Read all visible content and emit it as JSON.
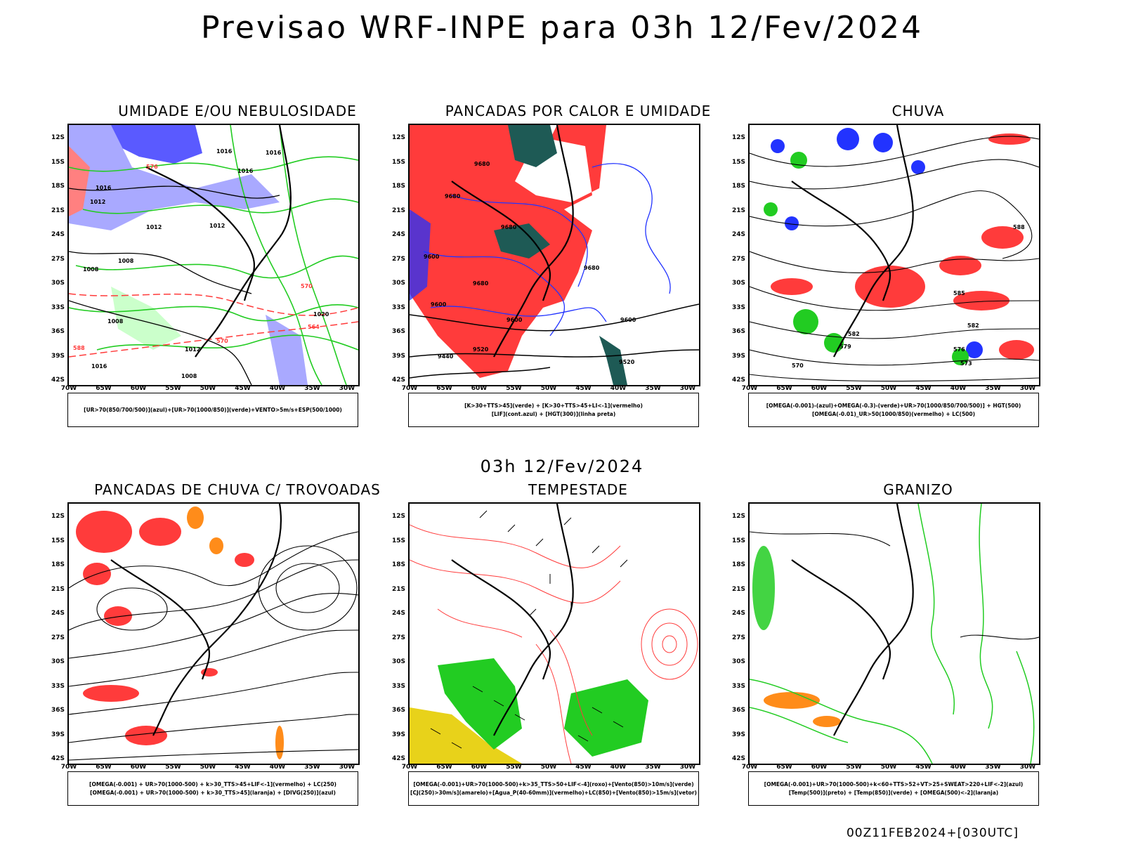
{
  "header": {
    "title": "Previsao WRF-INPE  para 03h 12/Fev/2024"
  },
  "row2_title": "03h 12/Fev/2024",
  "footer": "00Z11FEB2024+[030UTC]",
  "axes": {
    "lat_labels": [
      "12S",
      "15S",
      "18S",
      "21S",
      "24S",
      "27S",
      "30S",
      "33S",
      "36S",
      "39S",
      "42S"
    ],
    "lon_labels": [
      "70W",
      "65W",
      "60W",
      "55W",
      "50W",
      "45W",
      "40W",
      "35W",
      "30W"
    ]
  },
  "colors": {
    "green": "#22cc22",
    "red": "#ff3b3b",
    "blue": "#2233ff",
    "lightblue": "#a9a9ff",
    "darkteal": "#1e5a55",
    "orange": "#ff8c1a",
    "yellow": "#e8d21a"
  },
  "panels": [
    {
      "title": "UMIDADE E/OU NEBULOSIDADE",
      "legend": [
        "[UR>70(850/700/500)](azul)+[UR>70(1000/850)](verde)+VENTO>5m/s+ESP(500/1000)"
      ],
      "contour_labels": [
        "1016",
        "1016",
        "1016",
        "1016",
        "1012",
        "1012",
        "1012",
        "1008",
        "1008",
        "1008",
        "1020",
        "1012",
        "1016",
        "1008",
        "576",
        "570",
        "570",
        "564",
        "588"
      ]
    },
    {
      "title": "PANCADAS POR CALOR E UMIDADE",
      "legend": [
        "[K>30+TTS>45](verde) + [K>30+TTS>45+LI<-1](vermelho)",
        "[LIF](cont.azul) + [HGT(300)](linha preta)"
      ],
      "contour_labels": [
        "9680",
        "9680",
        "9680",
        "9680",
        "9600",
        "9600",
        "9680",
        "9600",
        "9600",
        "9520",
        "9440",
        "9520"
      ]
    },
    {
      "title": "CHUVA",
      "legend": [
        "[OMEGA(-0.001)-(azul)+OMEGA(-0.3)-(verde)+UR>70(1000/850/700/500)] + HGT(500)",
        "[OMEGA(-0.01)_UR>50(1000/850)(vermelho) + LC(500)"
      ],
      "contour_labels": [
        "588",
        "585",
        "582",
        "582",
        "579",
        "576",
        "570",
        "573"
      ]
    },
    {
      "title": "PANCADAS DE CHUVA C/ TROVOADAS",
      "legend": [
        "[OMEGA(-0.001) + UR>70(1000-500) + k>30_TTS>45+LIF<-1](vermelho) + LC(250)",
        "[OMEGA(-0.001) + UR>70(1000-500) + k>30_TTS>45](laranja) + [DIVG(250)](azul)"
      ]
    },
    {
      "title": "TEMPESTADE",
      "legend": [
        "[OMEGA(-0.001)+UR>70(1000-500)+k>35_TTS>50+LIF<-4](roxo)+[Vento(850)>10m/s](verde)",
        "[CJ(250)>30m/s](amarelo)+[Agua_P(40-60mm)](vermelho)+LC(850)+[Vento(850)>15m/s](vetor)"
      ]
    },
    {
      "title": "GRANIZO",
      "legend": [
        "[OMEGA(-0.001)+UR>70(1000-500)+k<60+TTS>52+VT>25+SWEAT>220+LIF<-2](azul)",
        "[Temp(500)](preto) + [Temp(850)](verde) + [OMEGA(500)<-2](laranja)"
      ]
    }
  ]
}
